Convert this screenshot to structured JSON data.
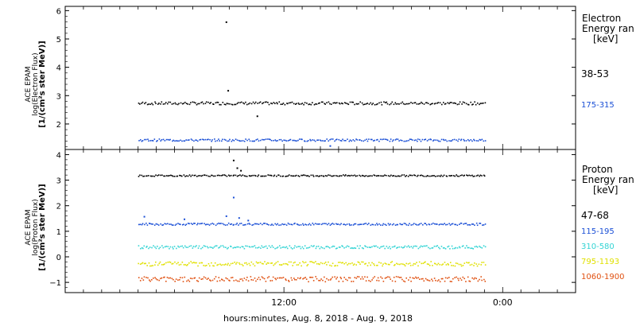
{
  "chart_data": [
    {
      "type": "scatter",
      "title": "Electron",
      "ylabel_lines": [
        "ACE EPAM",
        "log(Electron Flux)",
        "[1/(cm²s ster MeV)]"
      ],
      "legend_title": [
        "Electron",
        "Energy ran",
        "[keV]"
      ],
      "yticks": [
        2,
        3,
        4,
        5,
        6
      ],
      "ylim": [
        1.1,
        6.15
      ],
      "series": [
        {
          "name": "38-53",
          "color": "#000000",
          "baseline": 2.75,
          "noise": 0.05,
          "spikes": [
            [
              8.8,
              5.62
            ],
            [
              8.9,
              3.2
            ],
            [
              10.5,
              2.3
            ]
          ]
        },
        {
          "name": "175-315",
          "color": "#1a4fd6",
          "baseline": 1.45,
          "noise": 0.04,
          "spikes": [
            [
              14.5,
              1.25
            ]
          ]
        }
      ]
    },
    {
      "type": "scatter",
      "title": "Proton",
      "ylabel_lines": [
        "ACE EPAM",
        "log(Proton Flux)",
        "[1/(cm²s ster MeV)]"
      ],
      "legend_title": [
        "Proton",
        "Energy ran",
        "[keV]"
      ],
      "yticks": [
        -1,
        0,
        1,
        2,
        3,
        4
      ],
      "ylim": [
        -1.4,
        4.2
      ],
      "series": [
        {
          "name": "47-68",
          "color": "#000000",
          "baseline": 3.2,
          "noise": 0.03,
          "spikes": [
            [
              9.2,
              3.8
            ],
            [
              9.4,
              3.5
            ],
            [
              9.6,
              3.4
            ]
          ]
        },
        {
          "name": "115-195",
          "color": "#1a4fd6",
          "baseline": 1.3,
          "noise": 0.04,
          "spikes": [
            [
              4.3,
              1.6
            ],
            [
              6.5,
              1.5
            ],
            [
              8.8,
              1.62
            ],
            [
              9.2,
              2.35
            ],
            [
              9.5,
              1.55
            ],
            [
              10.0,
              1.45
            ]
          ]
        },
        {
          "name": "310-580",
          "color": "#33d4d4",
          "baseline": 0.4,
          "noise": 0.06,
          "spikes": []
        },
        {
          "name": "795-1193",
          "color": "#e0e000",
          "baseline": -0.25,
          "noise": 0.09,
          "spikes": []
        },
        {
          "name": "1060-1900",
          "color": "#e05010",
          "baseline": -0.85,
          "noise": 0.1,
          "spikes": []
        }
      ]
    }
  ],
  "x_axis": {
    "range_hours": [
      0,
      28
    ],
    "data_range_hours": [
      4,
      23
    ],
    "tick_labels": [
      {
        "hour": 12,
        "label": "12:00"
      },
      {
        "hour": 24,
        "label": "0:00"
      }
    ],
    "xlabel": "hours:minutes, Aug.  8, 2018 - Aug.  9, 2018"
  }
}
